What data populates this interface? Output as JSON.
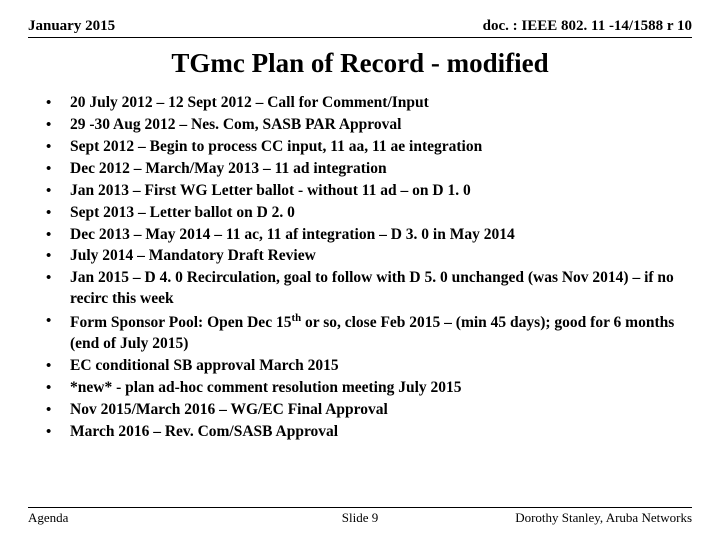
{
  "header": {
    "left": "January 2015",
    "right": "doc. : IEEE 802. 11 -14/1588 r 10"
  },
  "title": "TGmc Plan of Record - modified",
  "items": [
    "20 July 2012 – 12 Sept 2012 – Call for Comment/Input",
    "29 -30 Aug 2012 – Nes. Com, SASB PAR Approval",
    "Sept 2012 – Begin to process CC input, 11 aa, 11 ae integration",
    "Dec 2012 – March/May 2013  – 11 ad integration",
    "Jan 2013 – First WG Letter ballot  - without 11 ad – on D 1. 0",
    "Sept 2013 – Letter ballot on D 2. 0",
    "Dec 2013 – May 2014 – 11 ac, 11 af integration – D 3. 0 in May 2014",
    "July 2014 – Mandatory Draft Review",
    "Jan 2015 – D 4. 0 Recirculation, goal to follow with D 5. 0 unchanged (was Nov 2014) – if no recirc this week",
    "Form Sponsor Pool:  Open Dec 15th or so, close Feb 2015 – (min 45 days); good for 6 months (end of July 2015)",
    "EC conditional SB approval March 2015",
    "*new* - plan ad-hoc comment resolution meeting July 2015",
    "Nov 2015/March 2016 – WG/EC Final Approval",
    "March 2016 – Rev. Com/SASB Approval"
  ],
  "footer": {
    "left": "Agenda",
    "center": "Slide 9",
    "right": "Dorothy Stanley, Aruba Networks"
  }
}
